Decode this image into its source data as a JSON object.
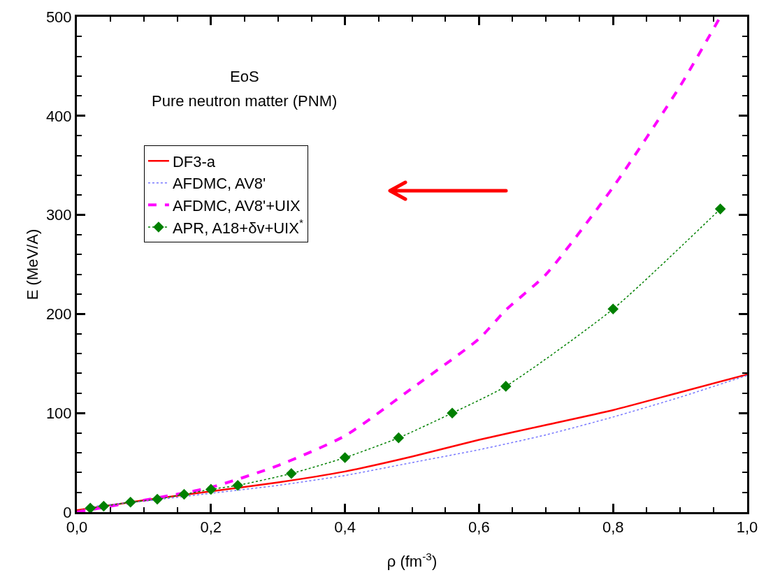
{
  "chart_data": {
    "type": "line",
    "xlabel": "ρ (fm$^{-3}$)",
    "ylabel": "E (MeV/A)",
    "annotations": [
      "EoS",
      "Pure neutron matter (PNM)"
    ],
    "xlim": [
      0,
      1
    ],
    "xticks": [
      {
        "value": 0,
        "label": "0,0"
      },
      {
        "value": 0.2,
        "label": "0,2"
      },
      {
        "value": 0.4,
        "label": "0,4"
      },
      {
        "value": 0.6,
        "label": "0,6"
      },
      {
        "value": 0.8,
        "label": "0,8"
      },
      {
        "value": 1,
        "label": "1,0"
      }
    ],
    "ylim": [
      0,
      500
    ],
    "yticks": [
      0,
      100,
      200,
      300,
      400,
      500
    ],
    "grid": false,
    "legend": "top left",
    "series": [
      {
        "name": "DF3-a",
        "color": "#ff0000",
        "line_style": "solid",
        "marker": "none",
        "x": [
          0,
          0.1,
          0.2,
          0.3,
          0.4,
          0.5,
          0.6,
          0.7,
          0.8,
          0.9,
          1.0
        ],
        "values": [
          2,
          12,
          21,
          30,
          41,
          56,
          73,
          88,
          103,
          121,
          139
        ]
      },
      {
        "name": "AFDMC, AV8'",
        "color": "#7777ff",
        "line_style": "dotted",
        "marker": "none",
        "x": [
          0,
          0.02,
          0.1,
          0.2,
          0.3,
          0.4,
          0.5,
          0.6,
          0.7,
          0.8,
          0.9,
          1.0
        ],
        "values": [
          0,
          5,
          11,
          19,
          27,
          37,
          50,
          63,
          78,
          96,
          116,
          138
        ]
      },
      {
        "name": "AFDMC, AV8'+UIX",
        "color": "#ff00ff",
        "line_style": "dashed",
        "marker": "none",
        "x": [
          0,
          0.1,
          0.2,
          0.3,
          0.4,
          0.5,
          0.6,
          0.64,
          0.7,
          0.8,
          0.9,
          0.96
        ],
        "values": [
          0,
          12,
          25,
          47,
          77,
          125,
          175,
          204,
          240,
          328,
          430,
          500
        ]
      },
      {
        "name": "APR, A18+δv+UIX$^{*}$",
        "color": "#008000",
        "line_style": "dotted",
        "marker": "diamond",
        "x": [
          0.02,
          0.04,
          0.08,
          0.12,
          0.16,
          0.2,
          0.24,
          0.32,
          0.4,
          0.48,
          0.56,
          0.64,
          0.8,
          0.96
        ],
        "values": [
          4,
          6,
          10,
          13,
          18,
          23,
          27,
          39,
          55,
          75,
          100,
          127,
          205,
          306
        ]
      }
    ]
  }
}
